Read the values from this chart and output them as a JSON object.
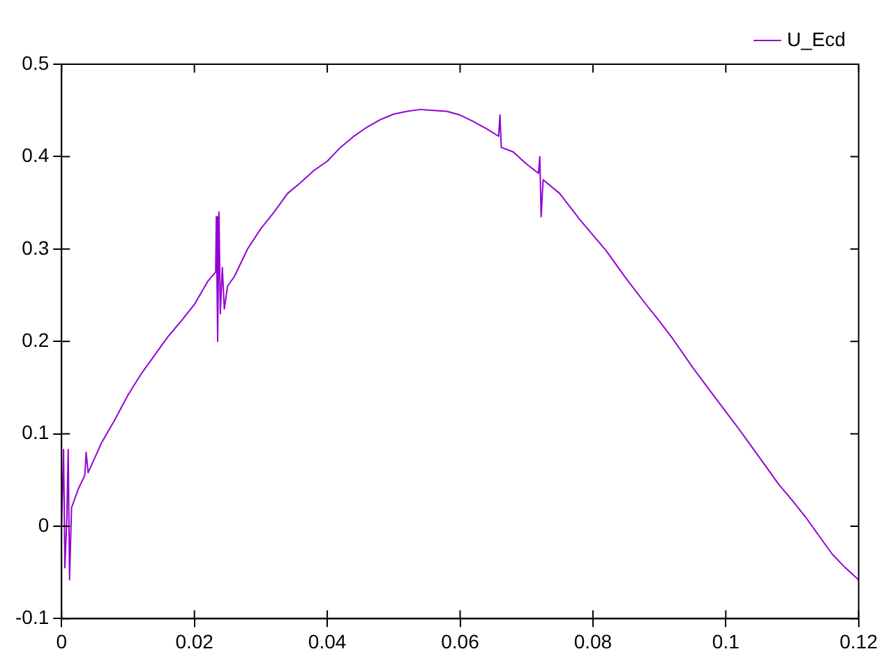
{
  "chart_data": {
    "type": "line",
    "xlim": [
      0,
      0.12
    ],
    "xticks": [
      0,
      0.02,
      0.04,
      0.06,
      0.08,
      0.1,
      0.12
    ],
    "ylim": [
      -0.1,
      0.5
    ],
    "yticks": [
      -0.1,
      0,
      0.1,
      0.2,
      0.3,
      0.4,
      0.5
    ],
    "grid": false,
    "legend": "top right",
    "marker": "none",
    "line_style": "solid",
    "series": [
      {
        "name": "U_Ecd",
        "color": "#9400d3",
        "x": [
          0,
          0.0003,
          0.0005,
          0.0008,
          0.001,
          0.0012,
          0.0015,
          0.0025,
          0.0035,
          0.0037,
          0.004,
          0.006,
          0.008,
          0.01,
          0.012,
          0.014,
          0.016,
          0.018,
          0.02,
          0.022,
          0.0232,
          0.0233,
          0.0235,
          0.0237,
          0.0239,
          0.0242,
          0.0245,
          0.025,
          0.026,
          0.028,
          0.03,
          0.032,
          0.034,
          0.036,
          0.038,
          0.04,
          0.042,
          0.044,
          0.046,
          0.048,
          0.05,
          0.052,
          0.054,
          0.056,
          0.058,
          0.06,
          0.062,
          0.064,
          0.0658,
          0.066,
          0.0662,
          0.068,
          0.07,
          0.0718,
          0.072,
          0.0722,
          0.0725,
          0.075,
          0.078,
          0.08,
          0.082,
          0.085,
          0.088,
          0.09,
          0.092,
          0.095,
          0.098,
          0.1,
          0.102,
          0.105,
          0.108,
          0.11,
          0.112,
          0.114,
          0.116,
          0.118,
          0.12
        ],
        "values": [
          0,
          0.083,
          -0.045,
          0.01,
          0.083,
          -0.058,
          0.02,
          0.04,
          0.055,
          0.08,
          0.058,
          0.09,
          0.115,
          0.142,
          0.165,
          0.185,
          0.205,
          0.222,
          0.24,
          0.265,
          0.275,
          0.335,
          0.2,
          0.34,
          0.23,
          0.28,
          0.235,
          0.26,
          0.27,
          0.3,
          0.322,
          0.34,
          0.36,
          0.372,
          0.385,
          0.395,
          0.41,
          0.422,
          0.432,
          0.44,
          0.446,
          0.449,
          0.451,
          0.45,
          0.449,
          0.445,
          0.438,
          0.43,
          0.422,
          0.445,
          0.41,
          0.405,
          0.392,
          0.382,
          0.4,
          0.335,
          0.375,
          0.36,
          0.332,
          0.315,
          0.298,
          0.268,
          0.24,
          0.222,
          0.203,
          0.172,
          0.143,
          0.124,
          0.105,
          0.075,
          0.045,
          0.028,
          0.01,
          -0.01,
          -0.03,
          -0.045,
          -0.058
        ]
      }
    ]
  }
}
